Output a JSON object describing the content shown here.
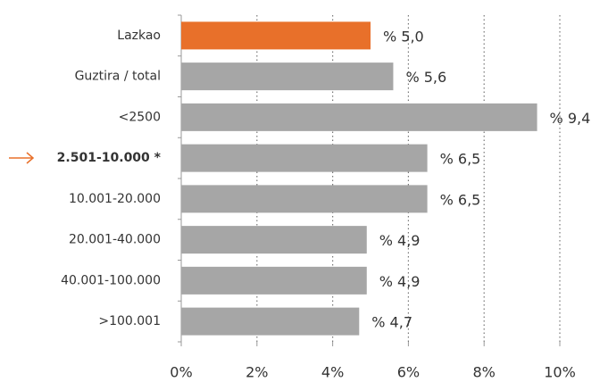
{
  "chart_data": {
    "type": "bar",
    "orientation": "horizontal",
    "categories": [
      "Lazkao",
      "Guztira / total",
      "<2500",
      "2.501-10.000 *",
      "10.001-20.000",
      "20.001-40.000",
      "40.001-100.000",
      ">100.001"
    ],
    "values": [
      5.0,
      5.6,
      9.4,
      6.5,
      6.5,
      4.9,
      4.9,
      4.7
    ],
    "value_labels": [
      "% 5,0",
      "% 5,6",
      "% 9,4",
      "% 6,5",
      "% 6,5",
      "% 4,9",
      "% 4,9",
      "% 4,7"
    ],
    "colors": [
      "#e8702a",
      "#a6a6a6",
      "#a6a6a6",
      "#a6a6a6",
      "#a6a6a6",
      "#a6a6a6",
      "#a6a6a6",
      "#a6a6a6"
    ],
    "label_colors": [
      "#333333",
      "#333333",
      "#333333",
      "#e8702a",
      "#333333",
      "#333333",
      "#333333",
      "#333333"
    ],
    "xlim": [
      0,
      10
    ],
    "xticks": [
      {
        "value": 0,
        "label": "0%"
      },
      {
        "value": 2,
        "label": "2%"
      },
      {
        "value": 4,
        "label": "4%"
      },
      {
        "value": 6,
        "label": "6%"
      },
      {
        "value": 8,
        "label": "8%"
      },
      {
        "value": 10,
        "label": "10%"
      }
    ],
    "grid": true
  }
}
